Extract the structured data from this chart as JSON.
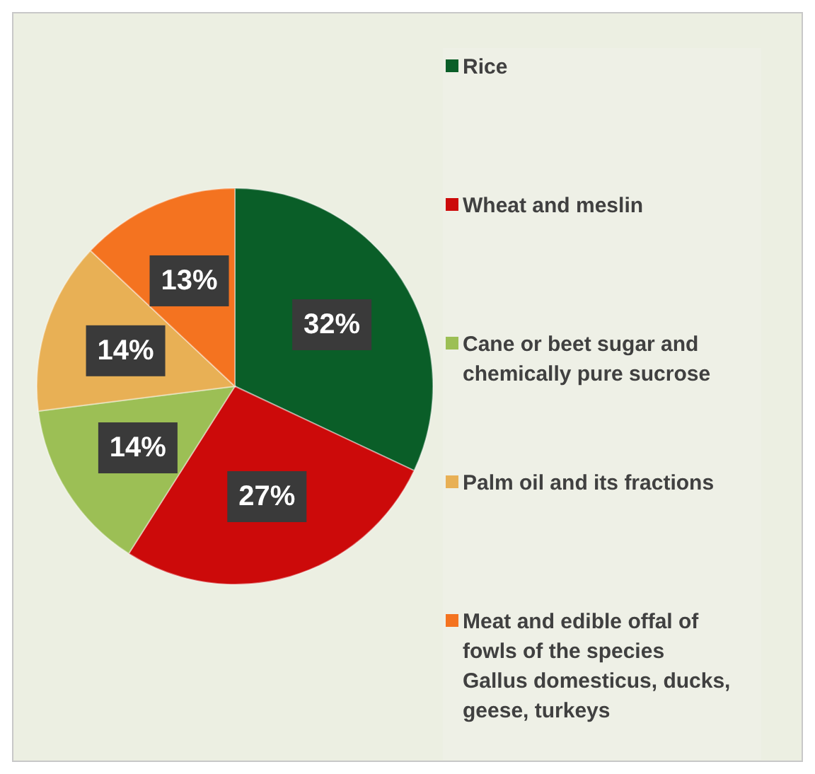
{
  "chart_data": {
    "type": "pie",
    "categories": [
      "Rice",
      "Wheat and meslin",
      "Cane or beet sugar and chemically pure sucrose",
      "Palm oil and its fractions",
      "Meat and edible offal of fowls of the species Gallus domesticus, ducks, geese, turkeys"
    ],
    "values": [
      32,
      27,
      14,
      14,
      13
    ],
    "colors": [
      "#0a5e28",
      "#cc0a0a",
      "#9cbf55",
      "#e8b055",
      "#f47320"
    ],
    "value_labels": [
      "32%",
      "27%",
      "14%",
      "14%",
      "13%"
    ],
    "legend": "right"
  }
}
